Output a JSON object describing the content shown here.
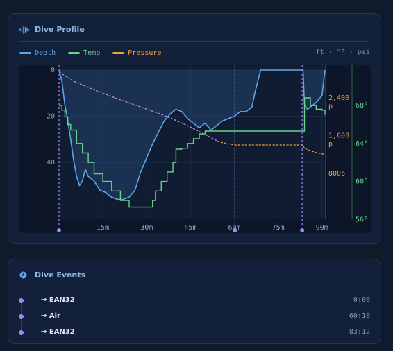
{
  "profile": {
    "title": "Dive Profile",
    "legend": [
      {
        "label": "Depth",
        "color": "#5fa6ea"
      },
      {
        "label": "Temp",
        "color": "#6ad48a"
      },
      {
        "label": "Pressure",
        "color": "#f0a43a"
      }
    ],
    "units": "ft · °F · psi"
  },
  "chart_data": {
    "type": "line",
    "xlabel": "",
    "ylabel": "",
    "x_unit": "minutes",
    "x_ticks": [
      "15m",
      "30m",
      "45m",
      "60m",
      "75m",
      "90m"
    ],
    "x_tick_values": [
      15,
      30,
      45,
      60,
      75,
      90
    ],
    "xlim": [
      0,
      91
    ],
    "depth_axis": {
      "ticks": [
        "0",
        "20",
        "40"
      ],
      "tick_values": [
        0,
        20,
        40
      ],
      "range": [
        0,
        60
      ],
      "inverted": true
    },
    "pressure_axis": {
      "ticks": [
        "2,400 p",
        "1,600 p",
        "800p"
      ],
      "tick_values": [
        2400,
        1600,
        800
      ]
    },
    "temp_axis": {
      "ticks": [
        "68°",
        "64°",
        "60°",
        "56°"
      ],
      "tick_values": [
        68,
        64,
        60,
        56
      ]
    },
    "series": [
      {
        "name": "Depth",
        "unit": "ft",
        "color": "#5fa6ea",
        "x": [
          0,
          1,
          2,
          3,
          4,
          5,
          6,
          7,
          8,
          9,
          10,
          12,
          14,
          16,
          18,
          20,
          22,
          24,
          26,
          28,
          30,
          32,
          34,
          36,
          38,
          40,
          42,
          44,
          46,
          48,
          50,
          52,
          54,
          56,
          58,
          60,
          62,
          64,
          66,
          67,
          68,
          69,
          70,
          72,
          75,
          78,
          82,
          83.5,
          84,
          85,
          86,
          88,
          90,
          91
        ],
        "y": [
          0,
          5,
          15,
          22,
          30,
          39,
          46,
          50,
          48,
          43,
          46,
          48,
          52,
          53,
          55,
          56,
          56,
          55,
          52,
          44,
          38,
          32,
          27,
          22,
          19,
          17,
          18,
          21,
          23,
          25,
          23,
          26,
          24,
          22,
          21,
          20,
          18,
          18,
          16,
          10,
          5,
          0,
          0,
          0,
          0,
          0,
          0,
          0,
          15,
          17,
          16,
          14,
          11,
          0
        ]
      },
      {
        "name": "Temp",
        "unit": "°F",
        "color": "#6ad48a",
        "x": [
          0,
          1,
          2,
          3,
          4,
          6,
          8,
          10,
          12,
          15,
          18,
          21,
          24,
          27,
          30,
          32,
          33,
          35,
          37,
          39,
          40,
          42,
          44,
          46,
          48,
          50,
          55,
          60,
          65,
          70,
          75,
          80,
          83.5,
          84,
          86,
          88,
          90,
          91
        ],
        "y": [
          68,
          67.5,
          66.8,
          66,
          65.4,
          64,
          63,
          62,
          60.8,
          60,
          59,
          58,
          57.3,
          57.3,
          57.3,
          58,
          59,
          60,
          61,
          62,
          63.4,
          63.5,
          64,
          64.5,
          65,
          65.3,
          65.3,
          65.3,
          65.3,
          65.3,
          65.3,
          65.3,
          65.3,
          68.8,
          68,
          67.6,
          67.5,
          67
        ]
      },
      {
        "name": "Pressure",
        "unit": "psi",
        "color": "#f0a43a",
        "x": [
          0,
          5,
          10,
          15,
          20,
          25,
          30,
          35,
          40,
          45,
          50,
          55,
          60,
          65,
          70,
          75,
          80,
          83.5,
          84,
          86,
          88,
          91
        ],
        "y": [
          2950,
          2750,
          2620,
          2500,
          2380,
          2270,
          2160,
          2050,
          1920,
          1780,
          1620,
          1460,
          1400,
          1400,
          1400,
          1400,
          1400,
          1400,
          1330,
          1280,
          1240,
          1200
        ]
      }
    ],
    "event_markers": [
      0,
      60.2,
      83.2
    ],
    "grid": true
  },
  "events": {
    "title": "Dive Events",
    "items": [
      {
        "label": "→ EAN32",
        "time": "0:00"
      },
      {
        "label": "→ Air",
        "time": "60:10"
      },
      {
        "label": "→ EAN32",
        "time": "83:12"
      }
    ]
  }
}
